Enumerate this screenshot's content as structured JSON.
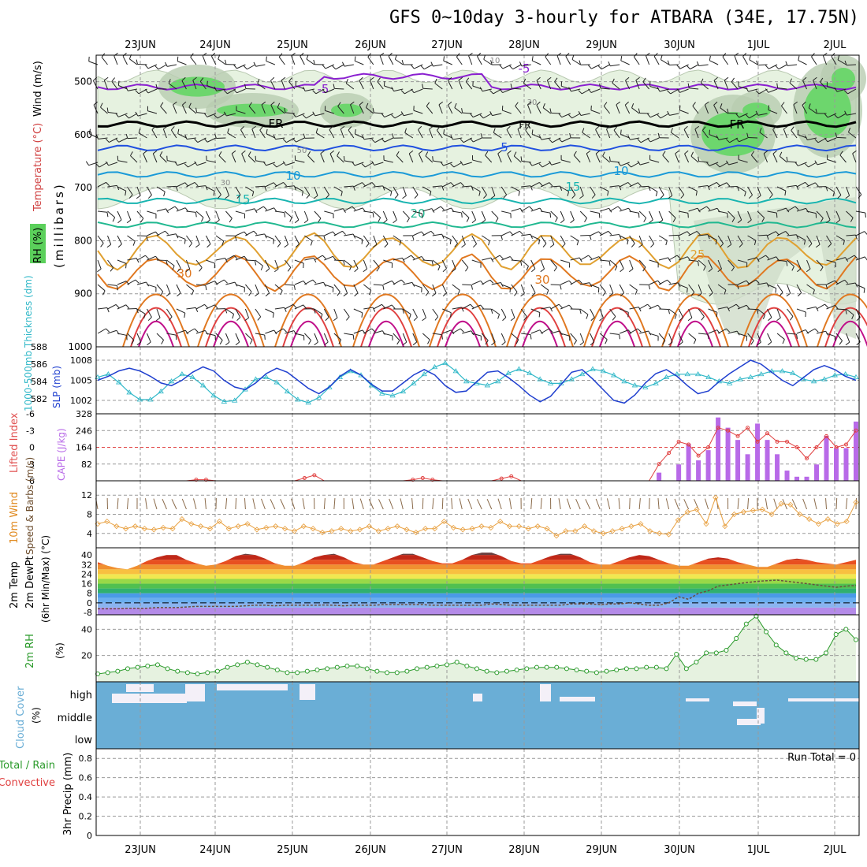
{
  "title": "GFS 0~10day 3-hourly for ATBARA (34E, 17.75N)",
  "chart_data": [
    {
      "type": "line",
      "panel": "upper-air",
      "labels": {
        "rh": "RH (%)",
        "ylabel": "(millibars)",
        "wind": "Wind (m/s)",
        "temp": "Temperature (°C)"
      },
      "x_dates": [
        "23JUN",
        "24JUN",
        "25JUN",
        "26JUN",
        "27JUN",
        "28JUN",
        "29JUN",
        "30JUN",
        "1JUL",
        "2JUL"
      ],
      "y_ticks": [
        "500",
        "600",
        "700",
        "800",
        "900",
        "1000"
      ],
      "ylim": [
        450,
        1000
      ],
      "isotherms": [
        {
          "label": "-5",
          "color": "#8a1fd0",
          "p": 510
        },
        {
          "label": "FR",
          "color": "#000000",
          "p": 580
        },
        {
          "label": "5",
          "color": "#2050e0",
          "p": 625
        },
        {
          "label": "10",
          "color": "#1a9ad8",
          "p": 675
        },
        {
          "label": "15",
          "color": "#18b4b0",
          "p": 725
        },
        {
          "label": "20",
          "color": "#20b890",
          "p": 770
        },
        {
          "label": "25",
          "color": "#e0a030",
          "p": 820
        },
        {
          "label": "30",
          "color": "#e07820",
          "p": 860
        }
      ],
      "rh_labels": [
        "10",
        "30",
        "50",
        "30"
      ],
      "series": []
    },
    {
      "type": "line",
      "panel": "thickness-slp",
      "labels": {
        "thickness": "1000-500mb Thickness (dm)",
        "slp": "SLP (mb)"
      },
      "y_left": [
        "588",
        "586",
        "584",
        "582"
      ],
      "y_right": [
        "1008",
        "1005",
        "1002"
      ],
      "thickness": [
        585,
        585.3,
        584.5,
        583.5,
        582.8,
        582.8,
        583.6,
        584.6,
        585.3,
        585,
        584.2,
        583.2,
        582.6,
        582.7,
        583.8,
        584.8,
        585,
        584.5,
        583.6,
        582.8,
        582.5,
        583,
        584,
        585,
        585.6,
        585.2,
        584.2,
        583.4,
        583.2,
        583.6,
        584.4,
        585.3,
        586,
        586.4,
        585.6,
        584.6,
        584.4,
        584.2,
        584.6,
        585.4,
        585.8,
        585.4,
        584.8,
        584.4,
        584.4,
        584.8,
        585.3,
        585.8,
        585.6,
        585.2,
        584.6,
        584.2,
        584,
        584.4,
        585,
        585.3,
        585.3,
        585.3,
        585,
        584.6,
        584.4,
        584.8,
        585,
        585.3,
        585.6,
        585.6,
        585.4,
        584.8,
        584.6,
        584.8,
        585.2,
        585.3,
        585
      ],
      "slp": [
        1005,
        1005.6,
        1006.4,
        1006.8,
        1006.4,
        1005.6,
        1004.6,
        1004.2,
        1005,
        1006.2,
        1007,
        1006.4,
        1005,
        1004,
        1003.6,
        1004.6,
        1006,
        1006.8,
        1006.2,
        1005,
        1003.8,
        1003,
        1004,
        1005.6,
        1006.6,
        1005.8,
        1004.4,
        1003.4,
        1003.4,
        1004.6,
        1005.8,
        1006.6,
        1005.8,
        1004.2,
        1003.2,
        1003.4,
        1004.8,
        1006.2,
        1006.4,
        1005.4,
        1004.2,
        1002.8,
        1001.8,
        1002.6,
        1004.4,
        1006.2,
        1006.6,
        1005.2,
        1003.6,
        1002,
        1001.6,
        1002.8,
        1004.6,
        1006,
        1006.6,
        1005.6,
        1004.2,
        1003,
        1003.4,
        1004.8,
        1006,
        1007,
        1008,
        1007.4,
        1006.2,
        1005,
        1004.2,
        1005.4,
        1006.6,
        1007.2,
        1006.6,
        1005.6,
        1005
      ]
    },
    {
      "type": "bar",
      "panel": "cape-li",
      "labels": {
        "li": "Lifted Index",
        "cape": "CAPE (J/kg)"
      },
      "y_left": [
        "-6",
        "-3",
        "0",
        "3",
        "6"
      ],
      "y_right": [
        "328",
        "246",
        "164",
        "82"
      ],
      "cape_start_index": 57,
      "cape": [
        0,
        0,
        0,
        0,
        0,
        0,
        0,
        0,
        0,
        0,
        0,
        0,
        0,
        0,
        0,
        0,
        0,
        0,
        0,
        0,
        0,
        0,
        0,
        0,
        0,
        0,
        0,
        0,
        0,
        0,
        0,
        0,
        0,
        0,
        0,
        0,
        0,
        0,
        0,
        0,
        0,
        0,
        0,
        0,
        0,
        0,
        0,
        0,
        0,
        0,
        0,
        0,
        0,
        0,
        0,
        0,
        0,
        40,
        0,
        80,
        180,
        100,
        150,
        310,
        260,
        200,
        130,
        280,
        200,
        130,
        50,
        20,
        20,
        80,
        220,
        160,
        160,
        290
      ],
      "li": [
        6,
        6,
        6,
        6,
        6,
        6,
        6,
        6,
        6,
        6,
        5.8,
        5.8,
        6,
        6,
        6,
        6,
        6,
        6,
        6,
        6,
        6,
        5.5,
        5,
        6,
        6,
        6,
        6,
        6,
        6,
        6,
        6,
        6,
        5.8,
        5.5,
        5.8,
        6,
        6,
        6,
        6,
        6,
        6,
        5.6,
        5.2,
        6,
        6,
        6,
        6,
        6,
        6,
        6,
        6,
        6,
        6,
        6,
        6,
        6,
        6,
        3,
        1,
        -1,
        -0.5,
        1.5,
        0,
        -3.5,
        -3,
        -2,
        -3.5,
        -1,
        -2.5,
        -1,
        -1,
        0,
        2,
        0,
        -2,
        0,
        -0.5,
        -3
      ]
    },
    {
      "type": "line",
      "panel": "wind10m",
      "labels": {
        "main": "10m Wind",
        "sub": "Speed & Barbs (m/s)"
      },
      "y_left": [
        "12",
        "8",
        "4"
      ],
      "speed": [
        6,
        6.5,
        5.5,
        5,
        5.5,
        5,
        4.8,
        5.2,
        5,
        7,
        6,
        5.5,
        5,
        6.5,
        5,
        5.5,
        6,
        4.8,
        5.2,
        5.5,
        5,
        4.5,
        5.5,
        5,
        4.2,
        4.5,
        5,
        4.5,
        4.8,
        5.5,
        4.5,
        5,
        5.5,
        4.8,
        4.2,
        5,
        5,
        6.5,
        5.2,
        4.8,
        5,
        5.5,
        5.2,
        6.5,
        5.5,
        5.5,
        5,
        5.5,
        5,
        3.5,
        4.5,
        4.5,
        5.5,
        4.5,
        4,
        4.5,
        5,
        5.5,
        6,
        4.5,
        4,
        3.8,
        6.8,
        8.5,
        9,
        6,
        11.5,
        5.5,
        8,
        8.5,
        8.8,
        9,
        8,
        10.2,
        10,
        8,
        7,
        6,
        7,
        6,
        6.5,
        10.5
      ]
    },
    {
      "type": "area",
      "panel": "temp2m",
      "labels": {
        "temp": "2m Temp",
        "dew": "2m DewPt",
        "minmax": "(6hr Min/Max) (°C)"
      },
      "y_left": [
        "40",
        "32",
        "24",
        "16",
        "8",
        "0",
        "-8"
      ],
      "temp": [
        34,
        31,
        29,
        28,
        31,
        35,
        38,
        40,
        40,
        36,
        33,
        31,
        32,
        35,
        39,
        41,
        40,
        37,
        33,
        31,
        31,
        34,
        38,
        40,
        41,
        38,
        34,
        32,
        32,
        35,
        38,
        41,
        41,
        38,
        35,
        33,
        33,
        36,
        40,
        42,
        42,
        39,
        35,
        33,
        33,
        36,
        39,
        41,
        41,
        38,
        34,
        32,
        32,
        35,
        38,
        40,
        39,
        36,
        33,
        31,
        31,
        34,
        37,
        38,
        37,
        34,
        32,
        30,
        30,
        33,
        36,
        37,
        36,
        34,
        33,
        32,
        34,
        36
      ],
      "dew": [
        -5,
        -5,
        -5,
        -4.5,
        -4.5,
        -4.5,
        -4,
        -4,
        -4,
        -3.5,
        -3,
        -3,
        -3,
        -3,
        -3,
        -2.5,
        -2,
        -2,
        -2.5,
        -2,
        -2,
        -2,
        -2,
        -1.8,
        -2,
        -2.5,
        -2,
        -2,
        -2,
        -1.5,
        -1.5,
        -1.5,
        -1.5,
        -1.5,
        -2,
        -2,
        -2,
        -2,
        -2,
        -2,
        -1,
        -1.5,
        -2,
        -2,
        -2,
        -2,
        -2,
        -2,
        -1,
        -1,
        -1,
        -1.5,
        -1,
        -1,
        0,
        -1,
        -2,
        -2,
        0,
        5,
        3,
        8,
        10,
        14,
        15,
        16,
        17,
        18,
        18.5,
        19,
        18,
        17,
        16,
        15,
        14,
        13,
        14,
        14.5
      ]
    },
    {
      "type": "area",
      "panel": "rh2m",
      "labels": {
        "rh": "2m RH",
        "unit": "(%)"
      },
      "y_left": [
        "40",
        "20"
      ],
      "rh": [
        6,
        7,
        8,
        10,
        11,
        12,
        13,
        10,
        8,
        7,
        6,
        7,
        8,
        11,
        13,
        15,
        13,
        11,
        9,
        7,
        7,
        8,
        9,
        10,
        11,
        12,
        12,
        10,
        8,
        7,
        7,
        8,
        10,
        11,
        12,
        13,
        15,
        12,
        10,
        8,
        7,
        8,
        9,
        10,
        11,
        11,
        11,
        10,
        9,
        8,
        7,
        8,
        9,
        10,
        10,
        11,
        11,
        10,
        21,
        10,
        15,
        22,
        22,
        24,
        33,
        44,
        50,
        38,
        28,
        22,
        18,
        17,
        17,
        22,
        36,
        40,
        32
      ]
    },
    {
      "type": "heatmap",
      "panel": "clouds",
      "labels": {
        "main": "Cloud Cover",
        "unit": "(%)",
        "high": "high",
        "middle": "middle",
        "low": "low"
      }
    },
    {
      "type": "bar",
      "panel": "precip",
      "labels": {
        "total": "Total / Rain",
        "conv": "Convective",
        "ylabel": "3hr Precip (mm)",
        "run": "Run Total = 0"
      },
      "y_left": [
        "0.8",
        "0.6",
        "0.4",
        "0.2",
        "0"
      ],
      "values": []
    }
  ],
  "colors": {
    "thickness": "#1f3fcf",
    "slp": "#30b8c8",
    "cape": "#b86ae8",
    "li": "#e04040",
    "wind": "#e8a040",
    "rh": "#2a9a2a",
    "cloud": "#6aaed6"
  }
}
